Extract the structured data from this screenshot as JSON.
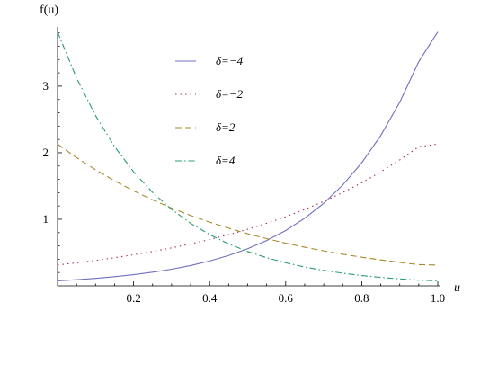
{
  "chart_data": {
    "type": "line",
    "xlabel": "u",
    "ylabel": "f(u)",
    "xlim": [
      0,
      1
    ],
    "ylim": [
      0,
      3.85
    ],
    "xticks": [
      {
        "value": 0.2,
        "label": "0.2"
      },
      {
        "value": 0.4,
        "label": "0.4"
      },
      {
        "value": 0.6,
        "label": "0.6"
      },
      {
        "value": 0.8,
        "label": "0.8"
      },
      {
        "value": 1.0,
        "label": "1.0"
      }
    ],
    "yticks": [
      {
        "value": 1,
        "label": "1"
      },
      {
        "value": 2,
        "label": "2"
      },
      {
        "value": 3,
        "label": "3"
      }
    ],
    "grid": false,
    "legend_position": "top-center",
    "x": [
      0,
      0.05,
      0.1,
      0.15,
      0.2,
      0.25,
      0.3,
      0.35,
      0.4,
      0.45,
      0.5,
      0.55,
      0.6,
      0.65,
      0.7,
      0.75,
      0.8,
      0.85,
      0.9,
      0.95,
      1.0
    ],
    "series": [
      {
        "name": "δ=−4",
        "color": "#6f6fbf",
        "dash": "solid",
        "values": [
          0.075,
          0.092,
          0.112,
          0.137,
          0.168,
          0.205,
          0.25,
          0.305,
          0.373,
          0.456,
          0.557,
          0.68,
          0.831,
          1.015,
          1.24,
          1.514,
          1.849,
          2.259,
          2.759,
          3.37,
          3.815
        ]
      },
      {
        "name": "δ=−2",
        "color": "#aa3355",
        "dash": "dotted",
        "values": [
          0.313,
          0.346,
          0.382,
          0.422,
          0.467,
          0.516,
          0.57,
          0.63,
          0.696,
          0.769,
          0.85,
          0.94,
          1.038,
          1.148,
          1.268,
          1.402,
          1.549,
          1.712,
          1.892,
          2.091,
          2.13
        ]
      },
      {
        "name": "δ=2",
        "color": "#a8892a",
        "dash": "dashed",
        "values": [
          2.13,
          1.927,
          1.744,
          1.578,
          1.427,
          1.292,
          1.169,
          1.057,
          0.957,
          0.866,
          0.783,
          0.709,
          0.641,
          0.58,
          0.525,
          0.475,
          0.43,
          0.389,
          0.352,
          0.318,
          0.313
        ]
      },
      {
        "name": "δ=4",
        "color": "#2a9c6e",
        "dash": "dashdot",
        "values": [
          3.815,
          3.123,
          2.557,
          2.093,
          1.713,
          1.403,
          1.148,
          0.94,
          0.77,
          0.63,
          0.516,
          0.422,
          0.346,
          0.283,
          0.232,
          0.19,
          0.155,
          0.127,
          0.104,
          0.085,
          0.075
        ]
      }
    ]
  }
}
